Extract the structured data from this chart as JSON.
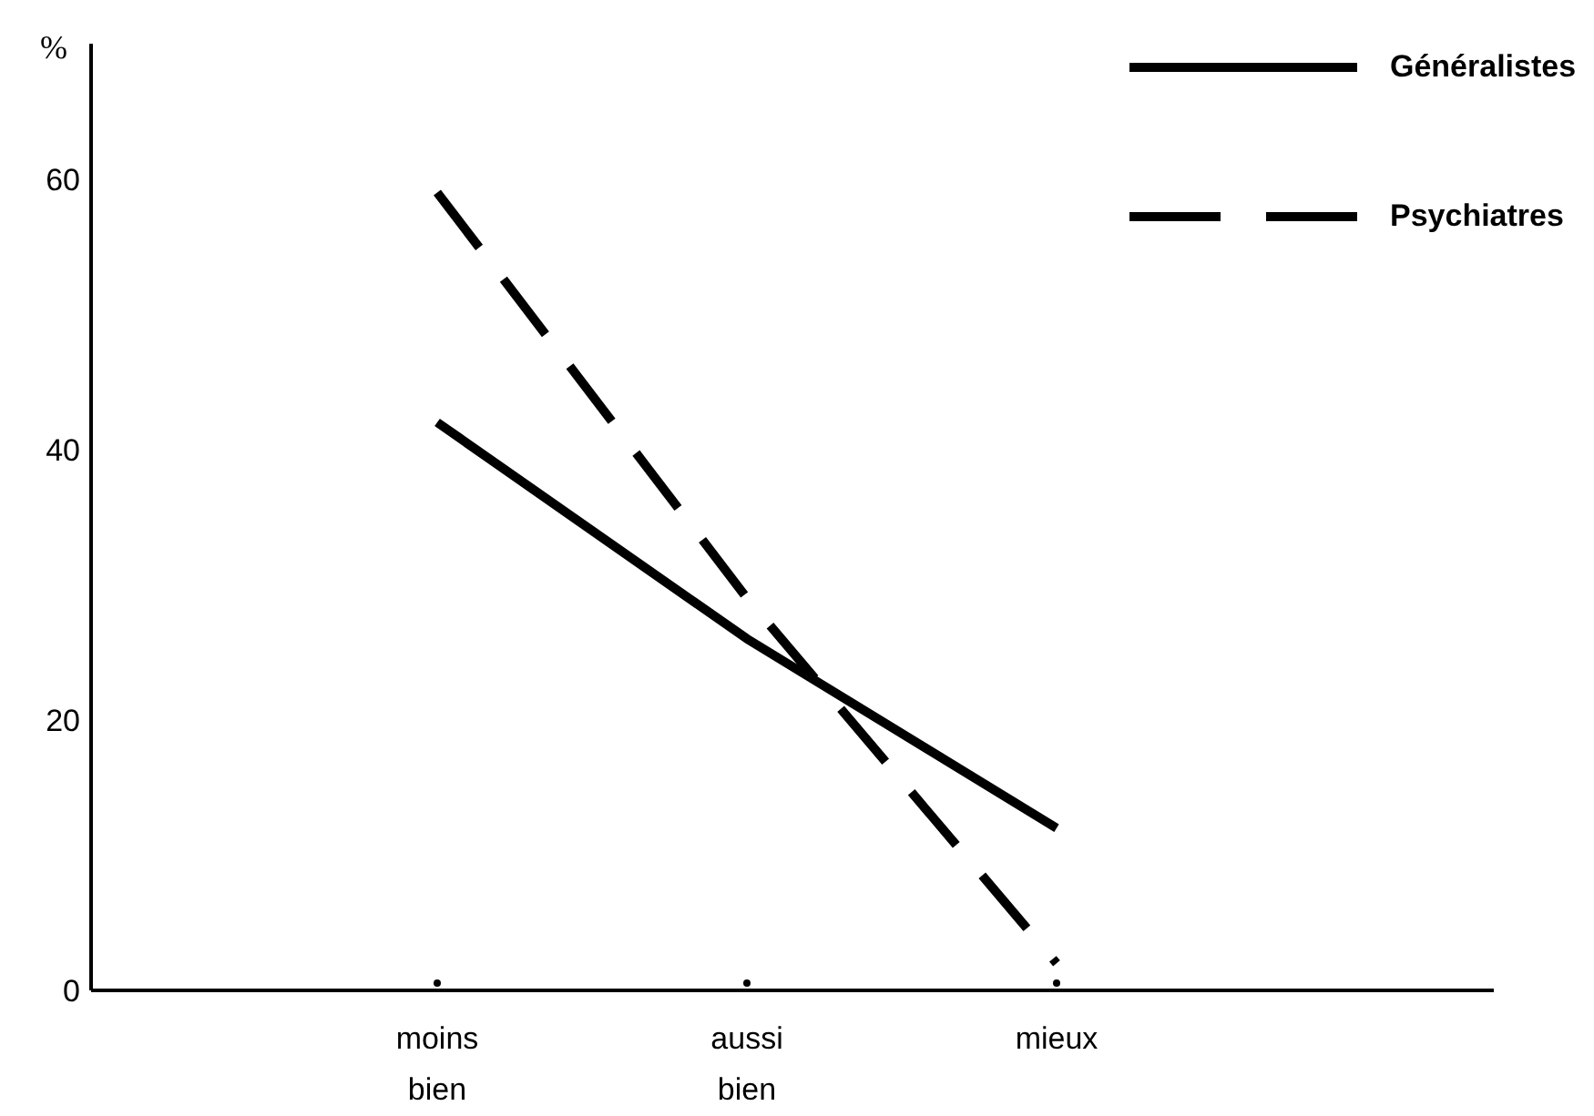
{
  "chart_data": {
    "type": "line",
    "ylabel": "%",
    "categories": [
      "moins bien",
      "aussi bien",
      "mieux"
    ],
    "series": [
      {
        "name": "Généralistes",
        "color": "#000000",
        "values": [
          42,
          26,
          12
        ],
        "line_style": "solid"
      },
      {
        "name": "Psychiatres",
        "color": "#000000",
        "values": [
          59,
          29,
          2
        ],
        "line_style": "dashed"
      }
    ],
    "ylim": [
      0,
      70
    ],
    "yticks": [
      0,
      20,
      40,
      60
    ],
    "grid": false,
    "legend": "top right",
    "marker": "none"
  }
}
